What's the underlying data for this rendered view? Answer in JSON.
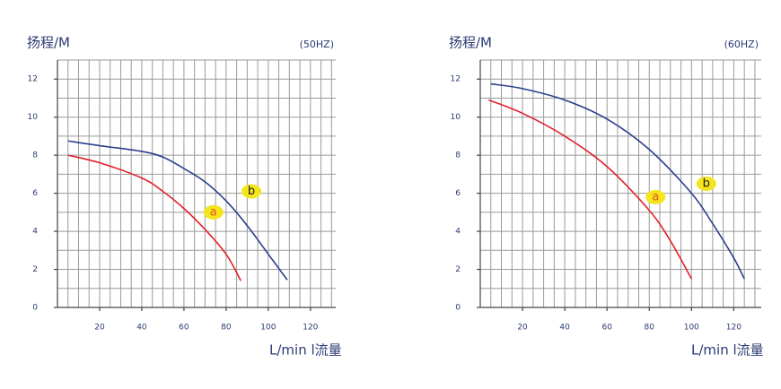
{
  "chart_data": [
    {
      "type": "line",
      "title": "扬程/M",
      "subtitle": "(50HZ)",
      "x_label": "L/min l流量",
      "xlim": [
        0,
        132
      ],
      "ylim": [
        0,
        13
      ],
      "xticks": [
        20,
        40,
        60,
        80,
        100,
        120
      ],
      "yticks": [
        0,
        2,
        4,
        6,
        8,
        10,
        12
      ],
      "grid": true,
      "xgrid_step": 5,
      "ygrid_step": 1,
      "series": [
        {
          "name": "a",
          "color": "#e3202a",
          "x": [
            5,
            20,
            40,
            50,
            60,
            70,
            80,
            87
          ],
          "values": [
            8.0,
            7.6,
            6.8,
            6.1,
            5.2,
            4.1,
            2.8,
            1.4
          ]
        },
        {
          "name": "b",
          "color": "#2b3f8c",
          "x": [
            5,
            20,
            40,
            50,
            60,
            70,
            80,
            90,
            100,
            109
          ],
          "values": [
            8.75,
            8.5,
            8.2,
            7.9,
            7.3,
            6.6,
            5.6,
            4.3,
            2.8,
            1.45
          ]
        }
      ]
    },
    {
      "type": "line",
      "title": "扬程/M",
      "subtitle": "(60HZ)",
      "x_label": "L/min l流量",
      "xlim": [
        0,
        133
      ],
      "ylim": [
        0,
        13
      ],
      "xticks": [
        20,
        40,
        60,
        80,
        100,
        120
      ],
      "yticks": [
        0,
        2,
        4,
        6,
        8,
        10,
        12
      ],
      "grid": true,
      "xgrid_step": 5,
      "ygrid_step": 1,
      "series": [
        {
          "name": "a",
          "color": "#e3202a",
          "x": [
            4,
            20,
            40,
            60,
            80,
            90,
            100
          ],
          "values": [
            10.9,
            10.2,
            9.0,
            7.4,
            5.1,
            3.5,
            1.5
          ]
        },
        {
          "name": "b",
          "color": "#2b3f8c",
          "x": [
            5,
            20,
            40,
            60,
            80,
            100,
            110,
            120,
            125
          ],
          "values": [
            11.75,
            11.5,
            10.9,
            9.9,
            8.3,
            6.0,
            4.4,
            2.6,
            1.5
          ]
        }
      ]
    }
  ]
}
